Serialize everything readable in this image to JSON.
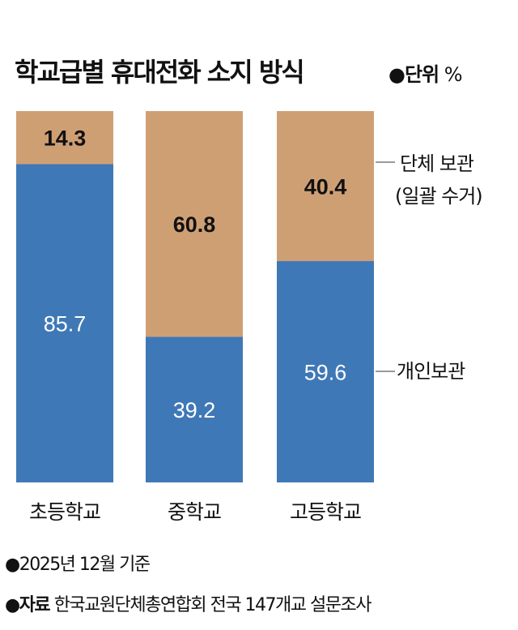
{
  "title": "학교급별 휴대전화 소지 방식",
  "unit_label": "●단위",
  "unit_symbol": "%",
  "chart_data": {
    "type": "bar",
    "stacked": true,
    "title": "학교급별 휴대전화 소지 방식",
    "ylim": [
      0,
      100
    ],
    "categories": [
      "초등학교",
      "중학교",
      "고등학교"
    ],
    "series": [
      {
        "name": "개인보관",
        "values": [
          85.7,
          39.2,
          59.6
        ],
        "color": "#3f78b6"
      },
      {
        "name": "단체 보관 (일괄 수거)",
        "values": [
          14.3,
          60.8,
          40.4
        ],
        "color": "#cf9f74"
      }
    ],
    "legend_labels": {
      "individual": "개인보관",
      "group_line1": "단체 보관",
      "group_line2": "(일괄 수거)"
    }
  },
  "footer": {
    "basis": "●2025년 12월 기준",
    "source_label": "●자료",
    "source_text": "한국교원단체총연합회 전국 147개교 설문조사"
  }
}
